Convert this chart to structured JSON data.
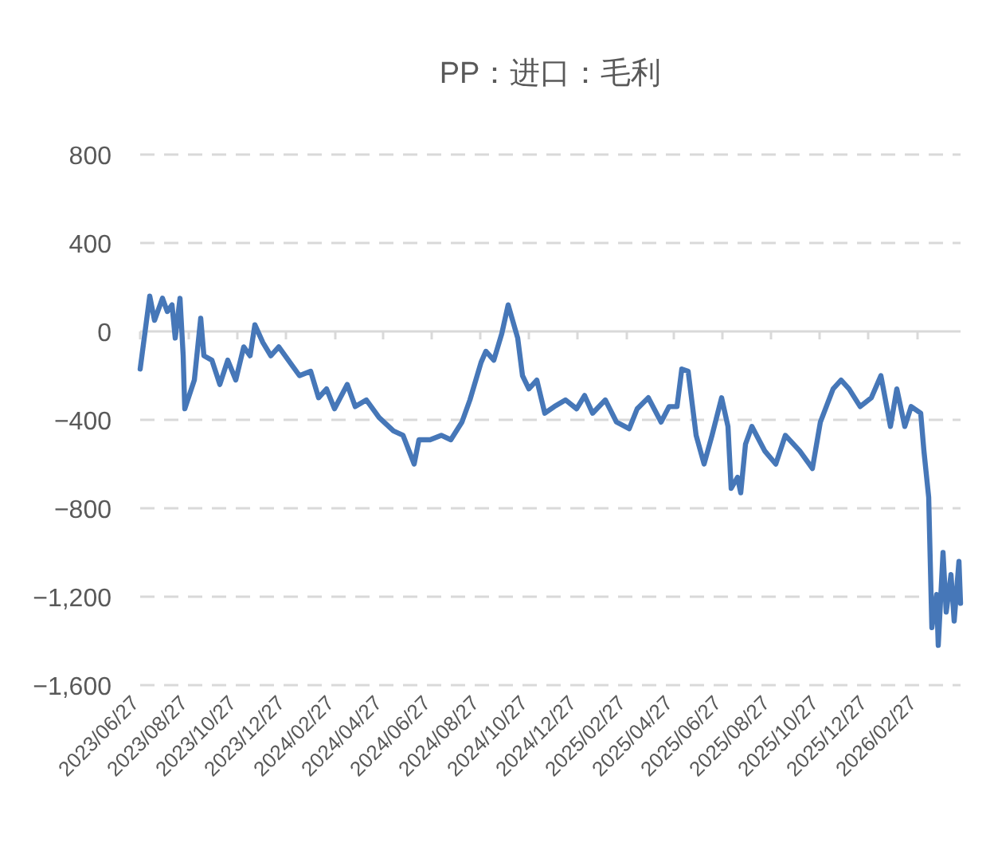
{
  "chart_data": {
    "type": "line",
    "title": "PP：进口：毛利",
    "x": [
      "2023-06-27",
      "2023-07-01",
      "2023-07-09",
      "2023-07-15",
      "2023-07-25",
      "2023-07-31",
      "2023-08-06",
      "2023-08-10",
      "2023-08-16",
      "2023-08-20",
      "2023-08-22",
      "2023-09-03",
      "2023-09-11",
      "2023-09-15",
      "2023-09-25",
      "2023-10-05",
      "2023-10-15",
      "2023-10-25",
      "2023-11-04",
      "2023-11-12",
      "2023-11-18",
      "2023-11-28",
      "2023-12-08",
      "2023-12-18",
      "2024-01-01",
      "2024-01-13",
      "2024-01-27",
      "2024-02-06",
      "2024-02-16",
      "2024-02-26",
      "2024-03-13",
      "2024-03-23",
      "2024-04-06",
      "2024-04-22",
      "2024-05-10",
      "2024-05-22",
      "2024-06-05",
      "2024-06-11",
      "2024-06-25",
      "2024-07-09",
      "2024-07-21",
      "2024-08-04",
      "2024-08-14",
      "2024-08-28",
      "2024-09-03",
      "2024-09-13",
      "2024-09-23",
      "2024-10-01",
      "2024-10-13",
      "2024-10-19",
      "2024-10-27",
      "2024-11-06",
      "2024-11-16",
      "2024-11-28",
      "2024-12-12",
      "2024-12-26",
      "2025-01-05",
      "2025-01-15",
      "2025-01-31",
      "2025-02-14",
      "2025-03-02",
      "2025-03-12",
      "2025-03-26",
      "2025-04-11",
      "2025-04-21",
      "2025-05-01",
      "2025-05-07",
      "2025-05-15",
      "2025-05-25",
      "2025-06-04",
      "2025-06-14",
      "2025-06-26",
      "2025-07-04",
      "2025-07-08",
      "2025-07-16",
      "2025-07-20",
      "2025-07-26",
      "2025-08-03",
      "2025-08-19",
      "2025-09-02",
      "2025-09-14",
      "2025-10-02",
      "2025-10-18",
      "2025-10-28",
      "2025-11-13",
      "2025-11-23",
      "2025-12-03",
      "2025-12-17",
      "2025-12-31",
      "2026-01-12",
      "2026-01-24",
      "2026-02-01",
      "2026-02-11",
      "2026-02-19",
      "2026-03-03",
      "2026-03-07",
      "2026-03-13",
      "2026-03-17",
      "2026-03-23",
      "2026-03-25",
      "2026-03-31",
      "2026-04-04",
      "2026-04-10",
      "2026-04-14",
      "2026-04-20",
      "2026-04-22"
    ],
    "series": [
      {
        "color": "#4677b8",
        "values": [
          -170,
          -60,
          160,
          50,
          150,
          90,
          120,
          -30,
          150,
          -110,
          -350,
          -220,
          60,
          -110,
          -130,
          -240,
          -130,
          -220,
          -70,
          -110,
          30,
          -50,
          -110,
          -70,
          -140,
          -200,
          -180,
          -300,
          -260,
          -350,
          -240,
          -340,
          -310,
          -390,
          -450,
          -470,
          -600,
          -490,
          -490,
          -470,
          -490,
          -410,
          -310,
          -140,
          -90,
          -130,
          -10,
          120,
          -30,
          -200,
          -260,
          -220,
          -370,
          -340,
          -310,
          -350,
          -290,
          -370,
          -310,
          -410,
          -440,
          -350,
          -300,
          -410,
          -340,
          -340,
          -170,
          -180,
          -470,
          -600,
          -470,
          -300,
          -430,
          -710,
          -660,
          -730,
          -510,
          -430,
          -540,
          -600,
          -470,
          -540,
          -620,
          -410,
          -260,
          -220,
          -260,
          -340,
          -300,
          -200,
          -430,
          -260,
          -430,
          -340,
          -370,
          -540,
          -750,
          -1340,
          -1190,
          -1420,
          -1000,
          -1270,
          -1100,
          -1310,
          -1040,
          -1230
        ]
      }
    ],
    "xlim": [
      "2023-06-27",
      "2026-04-22"
    ],
    "xticks": [
      {
        "value": "2023-06-27",
        "label": "2023/06/27"
      },
      {
        "value": "2023-08-27",
        "label": "2023/08/27"
      },
      {
        "value": "2023-10-27",
        "label": "2023/10/27"
      },
      {
        "value": "2023-12-27",
        "label": "2023/12/27"
      },
      {
        "value": "2024-02-27",
        "label": "2024/02/27"
      },
      {
        "value": "2024-04-27",
        "label": "2024/04/27"
      },
      {
        "value": "2024-06-27",
        "label": "2024/06/27"
      },
      {
        "value": "2024-08-27",
        "label": "2024/08/27"
      },
      {
        "value": "2024-10-27",
        "label": "2024/10/27"
      },
      {
        "value": "2024-12-27",
        "label": "2024/12/27"
      },
      {
        "value": "2025-02-27",
        "label": "2025/02/27"
      },
      {
        "value": "2025-04-27",
        "label": "2025/04/27"
      },
      {
        "value": "2025-06-27",
        "label": "2025/06/27"
      },
      {
        "value": "2025-08-27",
        "label": "2025/08/27"
      },
      {
        "value": "2025-10-27",
        "label": "2025/10/27"
      },
      {
        "value": "2025-12-27",
        "label": "2025/12/27"
      },
      {
        "value": "2026-02-27",
        "label": "2026/02/27"
      }
    ],
    "ylim": [
      -1600,
      800
    ],
    "yticks": [
      {
        "value": -1600,
        "label": "−1,600"
      },
      {
        "value": -1200,
        "label": "−1,200"
      },
      {
        "value": -800,
        "label": "−800"
      },
      {
        "value": -400,
        "label": "−400"
      },
      0,
      400,
      800
    ],
    "grid": "y",
    "marker": "none",
    "line_style": "solid"
  }
}
